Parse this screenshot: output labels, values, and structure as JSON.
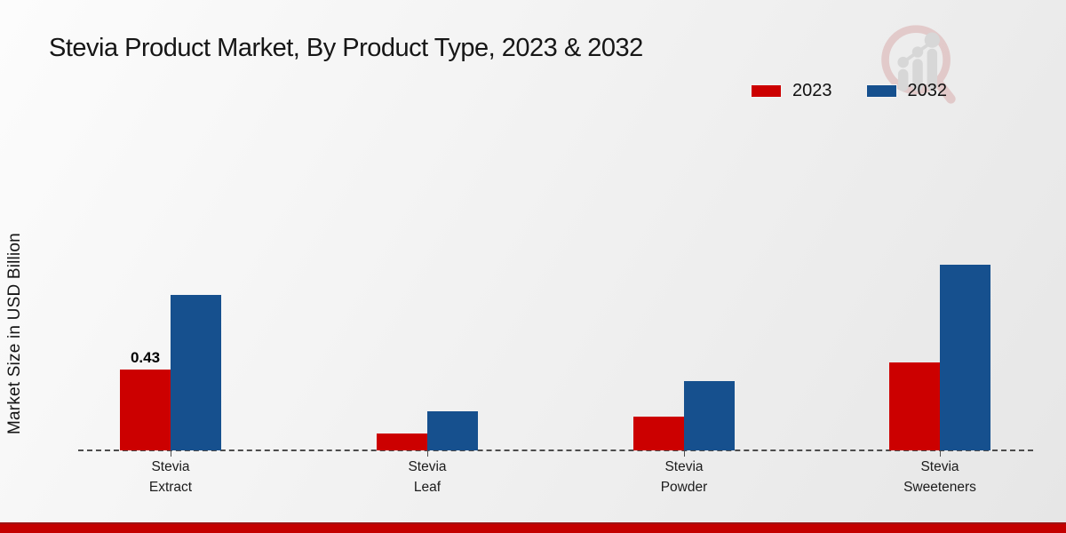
{
  "title": "Stevia Product Market, By Product Type, 2023 & 2032",
  "ylabel": "Market Size in USD Billion",
  "legend": {
    "items": [
      {
        "label": "2023",
        "color": "#cc0000"
      },
      {
        "label": "2032",
        "color": "#16508e"
      }
    ]
  },
  "watermark": {
    "icon": "magnifier-growth-chart-logo-icon"
  },
  "footer": {
    "bar_color": "#c40000"
  },
  "chart_data": {
    "type": "bar",
    "title": "Stevia Product Market, By Product Type, 2023 & 2032",
    "xlabel": "",
    "ylabel": "Market Size in USD Billion",
    "categories": [
      "Stevia Extract",
      "Stevia Leaf",
      "Stevia Powder",
      "Stevia Sweeteners"
    ],
    "series": [
      {
        "name": "2023",
        "color": "#cc0000",
        "values": [
          0.43,
          0.09,
          0.18,
          0.47
        ],
        "labels": [
          "0.43",
          null,
          null,
          null
        ]
      },
      {
        "name": "2032",
        "color": "#16508e",
        "values": [
          0.83,
          0.21,
          0.37,
          0.99
        ],
        "labels": [
          null,
          null,
          null,
          null
        ]
      }
    ],
    "ylim": [
      0,
      1.1
    ],
    "grid": false,
    "y_axis_ticks_visible": false,
    "baseline_style": "dashed",
    "legend_position": "top-right"
  }
}
